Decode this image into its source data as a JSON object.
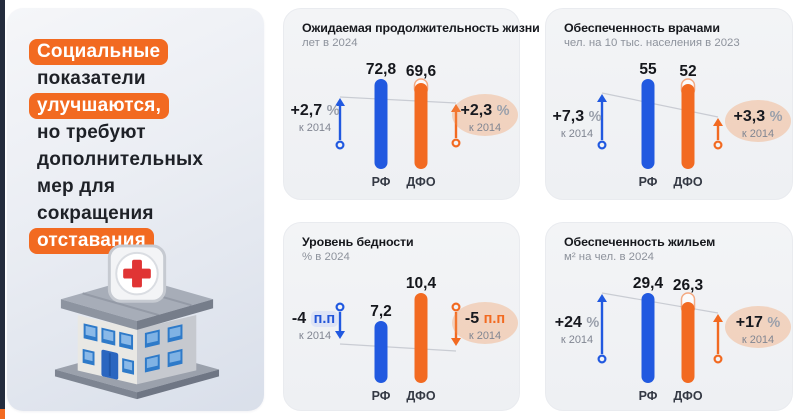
{
  "slide": {
    "left_panel": {
      "lines": [
        {
          "text": "Социальные",
          "highlighted": true
        },
        {
          "text": "показатели",
          "highlighted": false
        },
        {
          "text": "улучшаются,",
          "highlighted": true
        },
        {
          "text": "но требуют",
          "highlighted": false
        },
        {
          "text": "дополнительных",
          "highlighted": false
        },
        {
          "text": "мер для",
          "highlighted": false
        },
        {
          "text": "сокращения",
          "highlighted": false
        },
        {
          "text": "отставания",
          "highlighted": true
        }
      ],
      "illustration": "hospital-building-3d"
    }
  },
  "colors": {
    "rf_blue": "#2159e0",
    "dfo_orange": "#f26a21",
    "highlight_chip_bg": "#f26a21",
    "peach_highlight": "#f6cfb2",
    "blue_unit_chip": "#dee4f6",
    "trend_line_gray": "#c9ccd3",
    "navy_edge": "#242c3d"
  },
  "chart_data": [
    {
      "type": "bar",
      "title": "Ожидаемая продолжительность жизни",
      "subtitle": "лет в 2024",
      "categories": [
        "РФ",
        "ДФО"
      ],
      "values": [
        72.8,
        69.6
      ],
      "value_labels": [
        "72,8",
        "69,6"
      ],
      "change_left": {
        "value": "+2,7",
        "unit": "%",
        "caption": "к 2014",
        "direction": "up",
        "highlighted": false
      },
      "change_right": {
        "value": "+2,3",
        "unit": "%",
        "caption": "к 2014",
        "direction": "up",
        "highlighted": true
      }
    },
    {
      "type": "bar",
      "title": "Обеспеченность врачами",
      "subtitle": "чел. на 10 тыс. населения в 2023",
      "categories": [
        "РФ",
        "ДФО"
      ],
      "values": [
        55,
        52
      ],
      "value_labels": [
        "55",
        "52"
      ],
      "change_left": {
        "value": "+7,3",
        "unit": "%",
        "caption": "к 2014",
        "direction": "up",
        "highlighted": false
      },
      "change_right": {
        "value": "+3,3",
        "unit": "%",
        "caption": "к 2014",
        "direction": "up",
        "highlighted": true
      }
    },
    {
      "type": "bar",
      "title": "Уровень бедности",
      "subtitle": "% в 2024",
      "categories": [
        "РФ",
        "ДФО"
      ],
      "values": [
        7.2,
        10.4
      ],
      "value_labels": [
        "7,2",
        "10,4"
      ],
      "change_left": {
        "value": "-4",
        "unit": "п.п",
        "caption": "к 2014",
        "direction": "down",
        "highlighted": false,
        "unit_chip": "blue"
      },
      "change_right": {
        "value": "-5",
        "unit": "п.п",
        "caption": "к 2014",
        "direction": "down",
        "highlighted": true,
        "unit_chip": "orange"
      }
    },
    {
      "type": "bar",
      "title": "Обеспеченность жильем",
      "subtitle": "м² на чел. в 2024",
      "categories": [
        "РФ",
        "ДФО"
      ],
      "values": [
        29.4,
        26.3
      ],
      "value_labels": [
        "29,4",
        "26,3"
      ],
      "change_left": {
        "value": "+24",
        "unit": "%",
        "caption": "к 2014",
        "direction": "up",
        "highlighted": false
      },
      "change_right": {
        "value": "+17",
        "unit": "%",
        "caption": "к 2014",
        "direction": "up",
        "highlighted": true
      }
    }
  ]
}
